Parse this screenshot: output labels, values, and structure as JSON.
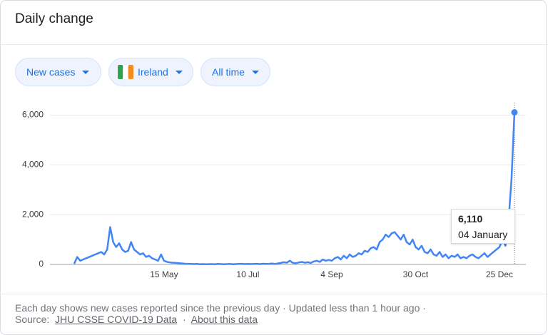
{
  "header": {
    "title": "Daily change"
  },
  "filters": [
    "New cases",
    "Ireland",
    "All time"
  ],
  "chart_data": {
    "type": "line",
    "categories": [
      null,
      null,
      null,
      null,
      null,
      null,
      null,
      null,
      null,
      null,
      null,
      null,
      null,
      null,
      null,
      null,
      null,
      null,
      null,
      null,
      null,
      null,
      null,
      null,
      null,
      null,
      null,
      null,
      null,
      null,
      "15 May",
      null,
      null,
      null,
      null,
      null,
      null,
      null,
      null,
      null,
      null,
      null,
      null,
      null,
      null,
      null,
      null,
      null,
      null,
      null,
      null,
      null,
      null,
      null,
      null,
      null,
      null,
      null,
      "10 Jul",
      null,
      null,
      null,
      null,
      null,
      null,
      null,
      null,
      null,
      null,
      null,
      null,
      null,
      null,
      null,
      null,
      null,
      null,
      null,
      null,
      null,
      null,
      null,
      null,
      null,
      null,
      null,
      "4 Sep",
      null,
      null,
      null,
      null,
      null,
      null,
      null,
      null,
      null,
      null,
      null,
      null,
      null,
      null,
      null,
      null,
      null,
      null,
      null,
      null,
      null,
      null,
      null,
      null,
      null,
      null,
      null,
      "30 Oct",
      null,
      null,
      null,
      null,
      null,
      null,
      null,
      null,
      null,
      null,
      null,
      null,
      null,
      null,
      null,
      null,
      null,
      null,
      null,
      null,
      null,
      null,
      null,
      null,
      null,
      null,
      null,
      "25 Dec",
      null,
      null,
      null,
      null,
      null
    ],
    "values": [
      20,
      300,
      150,
      200,
      250,
      300,
      350,
      400,
      450,
      500,
      400,
      600,
      1500,
      900,
      700,
      850,
      600,
      500,
      550,
      900,
      600,
      500,
      400,
      450,
      300,
      350,
      250,
      200,
      150,
      400,
      150,
      100,
      80,
      70,
      60,
      50,
      40,
      30,
      25,
      20,
      15,
      20,
      10,
      15,
      10,
      12,
      15,
      10,
      20,
      15,
      10,
      15,
      20,
      10,
      15,
      20,
      25,
      15,
      20,
      15,
      20,
      25,
      15,
      30,
      20,
      25,
      35,
      20,
      40,
      60,
      90,
      70,
      150,
      60,
      50,
      80,
      100,
      70,
      90,
      60,
      120,
      150,
      100,
      200,
      150,
      180,
      150,
      250,
      300,
      200,
      350,
      250,
      400,
      300,
      350,
      450,
      400,
      550,
      500,
      650,
      700,
      600,
      900,
      1000,
      1200,
      1100,
      1250,
      1300,
      1150,
      1000,
      1200,
      900,
      800,
      1000,
      700,
      600,
      750,
      500,
      450,
      600,
      400,
      350,
      500,
      300,
      400,
      250,
      350,
      300,
      400,
      250,
      300,
      250,
      350,
      400,
      300,
      250,
      350,
      450,
      300,
      400,
      500,
      600,
      700,
      1000,
      750,
      1700,
      3400,
      6110
    ],
    "color": "#4285f4",
    "ylim": [
      0,
      6500
    ],
    "yticks": [
      {
        "value": 0,
        "label": "0"
      },
      {
        "value": 2000,
        "label": "2,000"
      },
      {
        "value": 4000,
        "label": "4,000"
      },
      {
        "value": 6000,
        "label": "6,000"
      }
    ],
    "grid": true,
    "tooltip": {
      "label": "6,110",
      "date": "04 January"
    }
  },
  "footer": {
    "note": "Each day shows new cases reported since the previous day",
    "separator": "·",
    "updated": "Updated less than 1 hour ago",
    "source_label": "Source:",
    "source": "JHU CSSE COVID-19 Data",
    "about": "About this data"
  }
}
